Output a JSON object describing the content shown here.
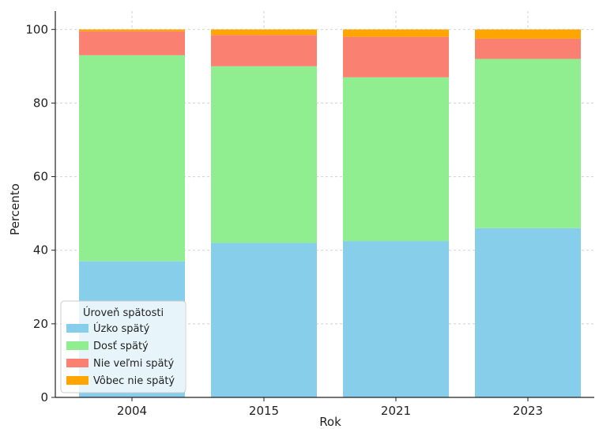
{
  "chart_data": {
    "type": "bar",
    "stacked": true,
    "categories": [
      "2004",
      "2015",
      "2021",
      "2023"
    ],
    "series": [
      {
        "name": "Úzko spätý",
        "color": "#87ceeb",
        "values": [
          37,
          42,
          42.5,
          46
        ]
      },
      {
        "name": "Dosť spätý",
        "color": "#90ee90",
        "values": [
          56,
          48,
          44.5,
          46
        ]
      },
      {
        "name": "Nie veľmi spätý",
        "color": "#fa8072",
        "values": [
          6.5,
          8.5,
          11,
          5.5
        ]
      },
      {
        "name": "Vôbec nie spätý",
        "color": "#ffa500",
        "values": [
          0.5,
          1.5,
          2,
          2.5
        ]
      }
    ],
    "xlabel": "Rok",
    "ylabel": "Percento",
    "ylim": [
      0,
      105
    ],
    "yticks": [
      0,
      20,
      40,
      60,
      80,
      100
    ],
    "grid": true,
    "legend": {
      "title": "Úroveň spätosti",
      "placement": "lower-left"
    }
  }
}
